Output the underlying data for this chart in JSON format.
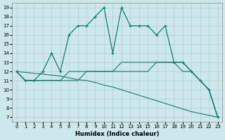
{
  "xlabel": "Humidex (Indice chaleur)",
  "xlim": [
    -0.5,
    23.5
  ],
  "ylim": [
    6.5,
    19.5
  ],
  "yticks": [
    7,
    8,
    9,
    10,
    11,
    12,
    13,
    14,
    15,
    16,
    17,
    18,
    19
  ],
  "xticks": [
    0,
    1,
    2,
    3,
    4,
    5,
    6,
    7,
    8,
    9,
    10,
    11,
    12,
    13,
    14,
    15,
    16,
    17,
    18,
    19,
    20,
    21,
    22,
    23
  ],
  "line_color": "#1a7a6e",
  "bg_color": "#cce8ec",
  "grid_color": "#b0cfd4",
  "lines": [
    {
      "x": [
        0,
        1,
        2,
        3,
        4,
        5,
        6,
        7,
        8,
        9,
        10,
        11,
        12,
        13,
        14,
        15,
        16,
        17,
        18,
        19,
        20,
        21,
        22,
        23
      ],
      "y": [
        12,
        11,
        11,
        12,
        14,
        12,
        16,
        17,
        17,
        18,
        19,
        14,
        19,
        17,
        17,
        17,
        16,
        17,
        13,
        13,
        12,
        11,
        10,
        7
      ],
      "markers": true
    },
    {
      "x": [
        0,
        1,
        2,
        3,
        4,
        5,
        6,
        7,
        8,
        9,
        10,
        11,
        12,
        13,
        14,
        15,
        16,
        17,
        18,
        19,
        20,
        21,
        22,
        23
      ],
      "y": [
        12,
        11,
        11,
        11,
        11,
        11,
        11,
        11,
        12,
        12,
        12,
        12,
        12,
        12,
        12,
        12,
        13,
        13,
        13,
        12,
        12,
        11,
        10,
        7
      ],
      "markers": false
    },
    {
      "x": [
        0,
        1,
        2,
        3,
        4,
        5,
        6,
        7,
        8,
        9,
        10,
        11,
        12,
        13,
        14,
        15,
        16,
        17,
        18,
        19,
        20,
        21,
        22,
        23
      ],
      "y": [
        12,
        11,
        11,
        11,
        11,
        11,
        12,
        12,
        12,
        12,
        12,
        12,
        13,
        13,
        13,
        13,
        13,
        13,
        13,
        13,
        12,
        11,
        10,
        7
      ],
      "markers": false
    },
    {
      "x": [
        0,
        1,
        2,
        3,
        4,
        5,
        6,
        7,
        8,
        9,
        10,
        11,
        12,
        13,
        14,
        15,
        16,
        17,
        18,
        19,
        20,
        21,
        22,
        23
      ],
      "y": [
        12,
        11.9,
        11.8,
        11.7,
        11.6,
        11.5,
        11.3,
        11.1,
        11.0,
        10.8,
        10.5,
        10.3,
        10.0,
        9.7,
        9.4,
        9.1,
        8.8,
        8.5,
        8.2,
        7.9,
        7.6,
        7.4,
        7.2,
        7
      ],
      "markers": false
    }
  ]
}
